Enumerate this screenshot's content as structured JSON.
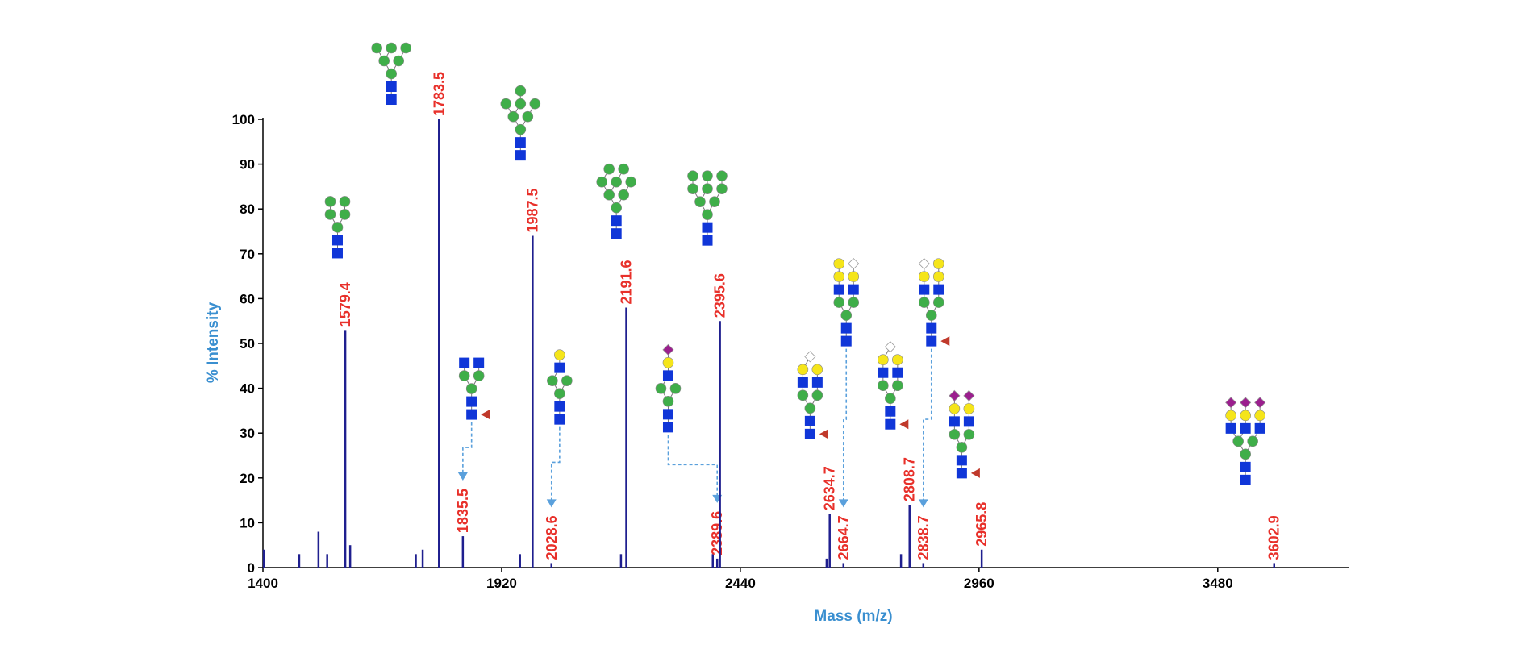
{
  "chart_data": {
    "type": "spectrum",
    "xlabel": "Mass (m/z)",
    "ylabel": "% Intensity",
    "xlim": [
      1400,
      3765
    ],
    "xticks": [
      1400,
      1920,
      2440,
      2960,
      3480
    ],
    "ylim": [
      0,
      100
    ],
    "yticks": [
      0,
      10,
      20,
      30,
      40,
      50,
      60,
      70,
      80,
      90,
      100
    ],
    "color": "#1f1f8f",
    "label_color": "#e8302a",
    "axis_title_color": "#3a8fd0",
    "peaks": {
      "x": [
        1579.4,
        1783.5,
        1835.5,
        1987.5,
        2028.6,
        2191.6,
        2389.6,
        2395.6,
        2634.7,
        2664.7,
        2808.7,
        2838.7,
        2965.8,
        3602.9
      ],
      "values": [
        53,
        100,
        7,
        74,
        1,
        58,
        2,
        55,
        12,
        1,
        14,
        1,
        4,
        1
      ]
    },
    "minor_peaks": {
      "x": [
        1402,
        1479,
        1521,
        1540,
        1590,
        1733,
        1748,
        1960,
        2180,
        2380,
        2628,
        2790
      ],
      "values": [
        4,
        3,
        8,
        3,
        5,
        3,
        4,
        3,
        3,
        3,
        2,
        3
      ]
    }
  }
}
